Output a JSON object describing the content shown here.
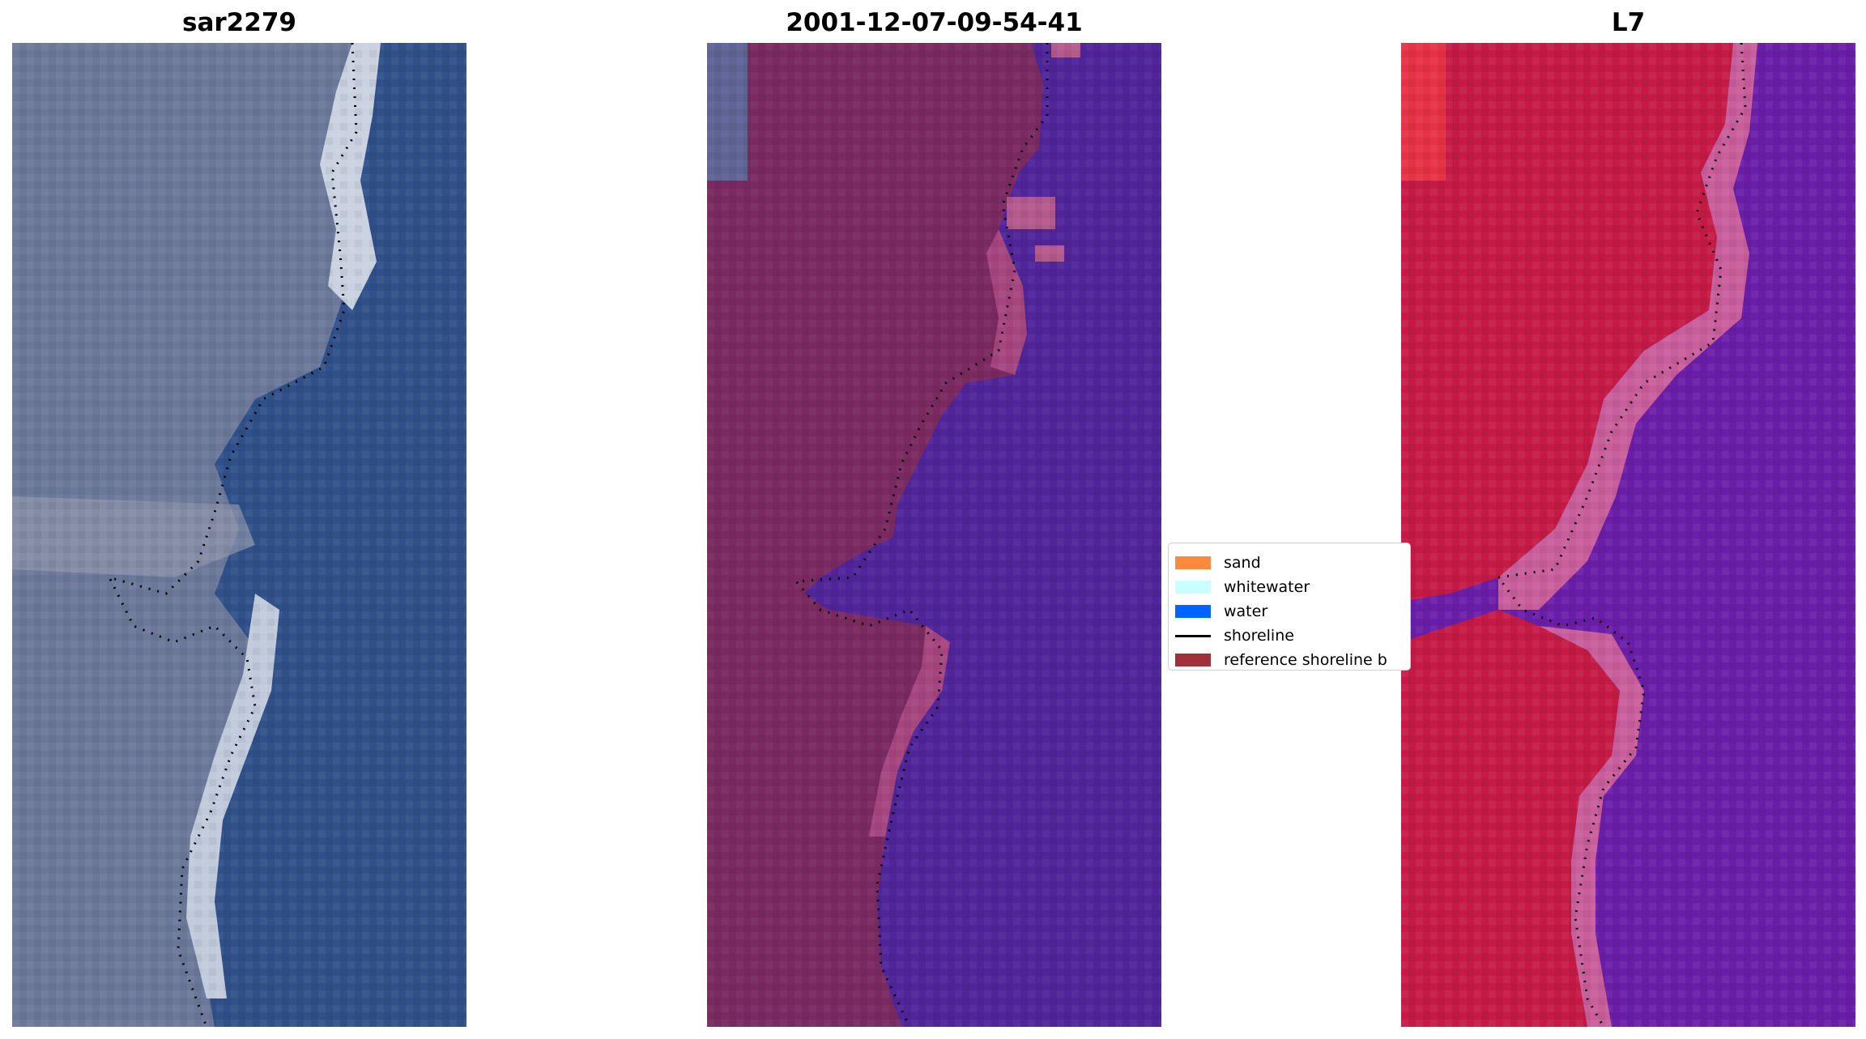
{
  "panels": [
    {
      "title": "sar2279"
    },
    {
      "title": "2001-12-07-09-54-41"
    },
    {
      "title": "L7"
    }
  ],
  "legend": {
    "items": [
      {
        "label": "sand",
        "color": "#fb8a3a",
        "kind": "patch"
      },
      {
        "label": "whitewater",
        "color": "#ccffff",
        "kind": "patch"
      },
      {
        "label": "water",
        "color": "#0064ff",
        "kind": "patch"
      },
      {
        "label": "shoreline",
        "color": "#000000",
        "kind": "line"
      },
      {
        "label": "reference shoreline b",
        "color": "#a0303a",
        "kind": "patch"
      }
    ]
  },
  "colors": {
    "rgb_land": "#6d7a9c",
    "rgb_water": "#2d4f8a",
    "rgb_beach": "#dde4ee",
    "class_land": "#7a2a60",
    "class_water": "#51259a",
    "ndwi_land": "#c41a45",
    "ndwi_water": "#6a1ea8",
    "ndwi_edge": "#d86a9a"
  }
}
